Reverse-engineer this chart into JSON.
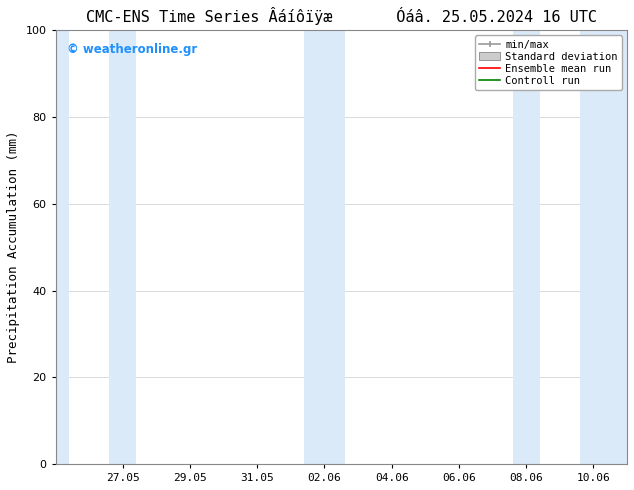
{
  "title": "CMC-ENS Time Series Âáíôïÿæ       Óáâ. 25.05.2024 16 UTC",
  "ylabel": "Precipitation Accumulation (mm)",
  "ylim": [
    0,
    100
  ],
  "yticks": [
    0,
    20,
    40,
    60,
    80,
    100
  ],
  "bg_color": "#ffffff",
  "plot_bg_color": "#ffffff",
  "band_color": "#dbeaf8",
  "watermark": "© weatheronline.gr",
  "watermark_color": "#1e90ff",
  "legend_entries": [
    "min/max",
    "Standard deviation",
    "Ensemble mean run",
    "Controll run"
  ],
  "x_tick_labels": [
    "27.05",
    "29.05",
    "31.05",
    "02.06",
    "04.06",
    "06.06",
    "08.06",
    "10.06"
  ],
  "x_tick_positions": [
    2,
    4,
    6,
    8,
    10,
    12,
    14,
    16
  ],
  "xlim": [
    0,
    17
  ],
  "bands": [
    [
      0.0,
      0.4
    ],
    [
      1.6,
      2.4
    ],
    [
      7.4,
      8.6
    ],
    [
      13.6,
      14.4
    ],
    [
      15.6,
      17.0
    ]
  ],
  "grid_color": "#cccccc",
  "title_fontsize": 11,
  "axis_label_fontsize": 9,
  "tick_fontsize": 8,
  "legend_fontsize": 7.5
}
